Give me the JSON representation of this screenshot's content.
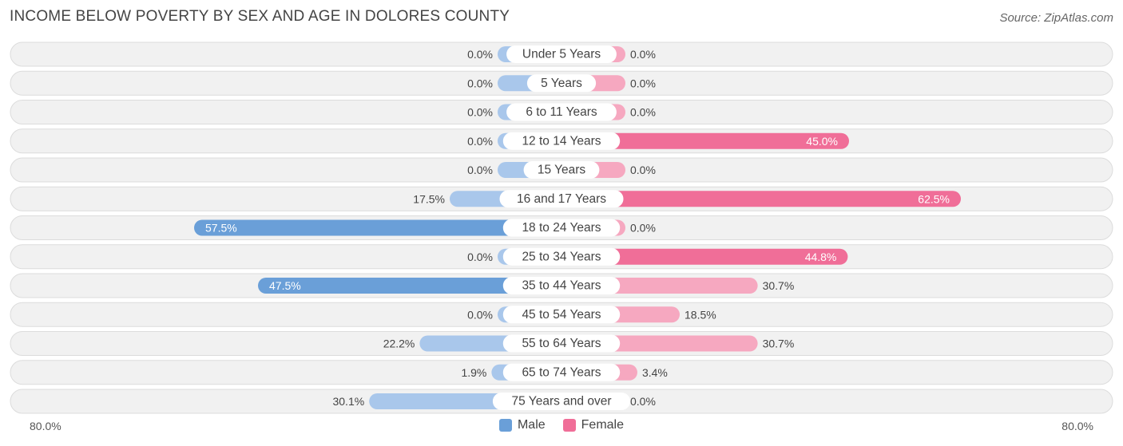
{
  "header": {
    "title": "INCOME BELOW POVERTY BY SEX AND AGE IN DOLORES COUNTY",
    "source": "Source: ZipAtlas.com"
  },
  "colors": {
    "male_strong": "#6a9fd8",
    "male_light": "#a9c7eb",
    "female_strong": "#f06e98",
    "female_light": "#f6a8c0",
    "row_bg": "#f1f1f1",
    "row_border": "#dcdcdc"
  },
  "legend": {
    "male": "Male",
    "female": "Female"
  },
  "axis": {
    "left": "80.0%",
    "right": "80.0%"
  },
  "chart_data": {
    "type": "bar",
    "orientation": "horizontal-diverging",
    "title": "INCOME BELOW POVERTY BY SEX AND AGE IN DOLORES COUNTY",
    "xlim": [
      -80,
      80
    ],
    "categories": [
      "Under 5 Years",
      "5 Years",
      "6 to 11 Years",
      "12 to 14 Years",
      "15 Years",
      "16 and 17 Years",
      "18 to 24 Years",
      "25 to 34 Years",
      "35 to 44 Years",
      "45 to 54 Years",
      "55 to 64 Years",
      "65 to 74 Years",
      "75 Years and over"
    ],
    "series": [
      {
        "name": "Male",
        "values": [
          0.0,
          0.0,
          0.0,
          0.0,
          0.0,
          17.5,
          57.5,
          0.0,
          47.5,
          0.0,
          22.2,
          1.9,
          30.1
        ],
        "labels": [
          "0.0%",
          "0.0%",
          "0.0%",
          "0.0%",
          "0.0%",
          "17.5%",
          "57.5%",
          "0.0%",
          "47.5%",
          "0.0%",
          "22.2%",
          "1.9%",
          "30.1%"
        ]
      },
      {
        "name": "Female",
        "values": [
          0.0,
          0.0,
          0.0,
          45.0,
          0.0,
          62.5,
          0.0,
          44.8,
          30.7,
          18.5,
          30.7,
          3.4,
          0.0
        ],
        "labels": [
          "0.0%",
          "0.0%",
          "0.0%",
          "45.0%",
          "0.0%",
          "62.5%",
          "0.0%",
          "44.8%",
          "30.7%",
          "18.5%",
          "30.7%",
          "3.4%",
          "0.0%"
        ]
      }
    ]
  }
}
